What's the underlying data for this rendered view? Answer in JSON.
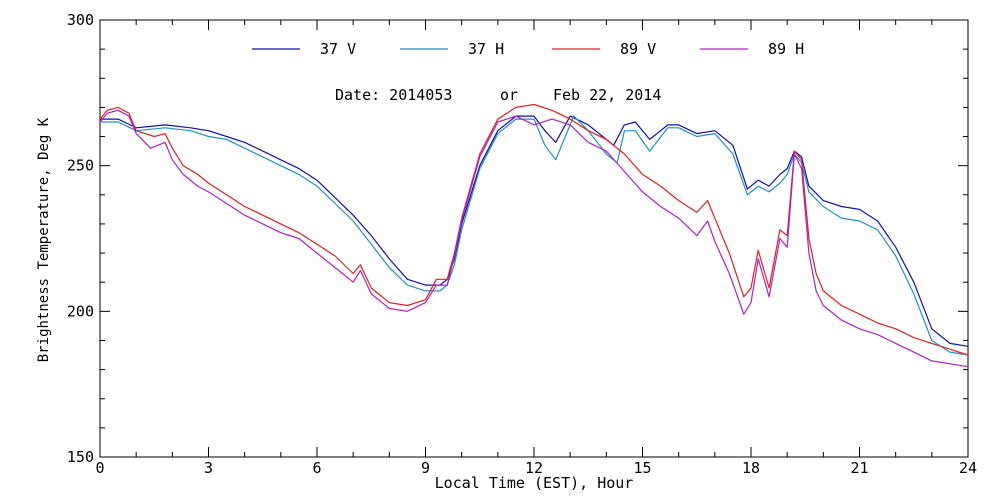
{
  "chart_data": {
    "type": "line",
    "annotation": {
      "date_label": "Date: 2014053",
      "or_label": "or",
      "date_text": "Feb 22, 2014"
    },
    "xlabel": "Local Time (EST), Hour",
    "ylabel": "Brightness Temperature, Deg K",
    "xlim": [
      0,
      24
    ],
    "ylim": [
      150,
      300
    ],
    "xticks": [
      0,
      3,
      6,
      9,
      12,
      15,
      18,
      21,
      24
    ],
    "yticks": [
      150,
      200,
      250,
      300
    ],
    "legend_position": "top",
    "grid": false,
    "series": [
      {
        "name": "37 V",
        "color": "#1010b0",
        "points": [
          [
            0,
            266
          ],
          [
            0.5,
            266
          ],
          [
            1,
            263
          ],
          [
            1.8,
            264
          ],
          [
            2.5,
            263
          ],
          [
            3,
            262
          ],
          [
            3.5,
            260
          ],
          [
            4,
            258
          ],
          [
            4.5,
            255
          ],
          [
            5,
            252
          ],
          [
            5.5,
            249
          ],
          [
            6,
            245
          ],
          [
            6.5,
            239
          ],
          [
            7,
            233
          ],
          [
            7.5,
            226
          ],
          [
            8,
            218
          ],
          [
            8.5,
            211
          ],
          [
            9,
            209
          ],
          [
            9.4,
            209
          ],
          [
            9.6,
            211
          ],
          [
            9.8,
            218
          ],
          [
            10,
            230
          ],
          [
            10.5,
            250
          ],
          [
            11,
            262
          ],
          [
            11.5,
            267
          ],
          [
            12,
            267
          ],
          [
            12.3,
            262
          ],
          [
            12.6,
            258
          ],
          [
            13,
            267
          ],
          [
            13.5,
            264
          ],
          [
            14,
            259
          ],
          [
            14.2,
            257
          ],
          [
            14.5,
            264
          ],
          [
            14.8,
            265
          ],
          [
            15.2,
            259
          ],
          [
            15.7,
            264
          ],
          [
            16,
            264
          ],
          [
            16.5,
            261
          ],
          [
            17,
            262
          ],
          [
            17.5,
            257
          ],
          [
            17.9,
            242
          ],
          [
            18.2,
            245
          ],
          [
            18.5,
            243
          ],
          [
            18.8,
            247
          ],
          [
            19,
            249
          ],
          [
            19.2,
            255
          ],
          [
            19.4,
            253
          ],
          [
            19.6,
            243
          ],
          [
            20,
            238
          ],
          [
            20.5,
            236
          ],
          [
            21,
            235
          ],
          [
            21.5,
            231
          ],
          [
            22,
            222
          ],
          [
            22.5,
            210
          ],
          [
            23,
            194
          ],
          [
            23.5,
            189
          ],
          [
            24,
            188
          ]
        ]
      },
      {
        "name": "37 H",
        "color": "#2090c8",
        "points": [
          [
            0,
            265
          ],
          [
            0.5,
            265
          ],
          [
            1,
            262
          ],
          [
            1.8,
            263
          ],
          [
            2.5,
            262
          ],
          [
            3,
            260
          ],
          [
            3.5,
            259
          ],
          [
            4,
            256
          ],
          [
            4.5,
            253
          ],
          [
            5,
            250
          ],
          [
            5.5,
            247
          ],
          [
            6,
            243
          ],
          [
            6.5,
            237
          ],
          [
            7,
            231
          ],
          [
            7.5,
            223
          ],
          [
            8,
            215
          ],
          [
            8.5,
            209
          ],
          [
            9,
            207
          ],
          [
            9.4,
            207
          ],
          [
            9.6,
            209
          ],
          [
            9.8,
            216
          ],
          [
            10,
            228
          ],
          [
            10.5,
            249
          ],
          [
            11,
            261
          ],
          [
            11.5,
            266
          ],
          [
            12,
            266
          ],
          [
            12.3,
            257
          ],
          [
            12.6,
            252
          ],
          [
            12.9,
            261
          ],
          [
            13.1,
            267
          ],
          [
            13.5,
            262
          ],
          [
            14,
            254
          ],
          [
            14.3,
            251
          ],
          [
            14.5,
            262
          ],
          [
            14.8,
            262
          ],
          [
            15.2,
            255
          ],
          [
            15.7,
            263
          ],
          [
            16,
            263
          ],
          [
            16.5,
            260
          ],
          [
            17,
            261
          ],
          [
            17.5,
            254
          ],
          [
            17.9,
            240
          ],
          [
            18.2,
            243
          ],
          [
            18.5,
            241
          ],
          [
            18.8,
            244
          ],
          [
            19,
            247
          ],
          [
            19.2,
            254
          ],
          [
            19.4,
            251
          ],
          [
            19.6,
            241
          ],
          [
            20,
            236
          ],
          [
            20.5,
            232
          ],
          [
            21,
            231
          ],
          [
            21.5,
            228
          ],
          [
            22,
            219
          ],
          [
            22.5,
            206
          ],
          [
            23,
            190
          ],
          [
            23.5,
            186
          ],
          [
            24,
            185
          ]
        ]
      },
      {
        "name": "89 V",
        "color": "#e02020",
        "points": [
          [
            0,
            266
          ],
          [
            0.2,
            269
          ],
          [
            0.5,
            270
          ],
          [
            0.8,
            268
          ],
          [
            1,
            262
          ],
          [
            1.5,
            260
          ],
          [
            1.8,
            261
          ],
          [
            2,
            256
          ],
          [
            2.3,
            250
          ],
          [
            2.7,
            247
          ],
          [
            3,
            244
          ],
          [
            3.5,
            240
          ],
          [
            4,
            236
          ],
          [
            4.5,
            233
          ],
          [
            5,
            230
          ],
          [
            5.5,
            227
          ],
          [
            6,
            223
          ],
          [
            6.5,
            219
          ],
          [
            7,
            213
          ],
          [
            7.2,
            216
          ],
          [
            7.5,
            208
          ],
          [
            8,
            203
          ],
          [
            8.5,
            202
          ],
          [
            9,
            204
          ],
          [
            9.3,
            211
          ],
          [
            9.6,
            211
          ],
          [
            9.8,
            220
          ],
          [
            10,
            232
          ],
          [
            10.5,
            254
          ],
          [
            11,
            266
          ],
          [
            11.5,
            270
          ],
          [
            12,
            271
          ],
          [
            12.5,
            269
          ],
          [
            13,
            266
          ],
          [
            13.5,
            262
          ],
          [
            14,
            259
          ],
          [
            14.5,
            254
          ],
          [
            15,
            247
          ],
          [
            15.5,
            243
          ],
          [
            16,
            238
          ],
          [
            16.5,
            234
          ],
          [
            16.8,
            238
          ],
          [
            17,
            232
          ],
          [
            17.4,
            220
          ],
          [
            17.8,
            205
          ],
          [
            18,
            208
          ],
          [
            18.2,
            221
          ],
          [
            18.5,
            208
          ],
          [
            18.8,
            228
          ],
          [
            19,
            226
          ],
          [
            19.2,
            255
          ],
          [
            19.4,
            252
          ],
          [
            19.6,
            225
          ],
          [
            19.8,
            213
          ],
          [
            20,
            207
          ],
          [
            20.5,
            202
          ],
          [
            21,
            199
          ],
          [
            21.5,
            196
          ],
          [
            22,
            194
          ],
          [
            22.5,
            191
          ],
          [
            23,
            189
          ],
          [
            23.5,
            187
          ],
          [
            24,
            185
          ]
        ]
      },
      {
        "name": "89 H",
        "color": "#b020c8",
        "points": [
          [
            0,
            265
          ],
          [
            0.2,
            268
          ],
          [
            0.5,
            269
          ],
          [
            0.8,
            267
          ],
          [
            1,
            261
          ],
          [
            1.4,
            256
          ],
          [
            1.8,
            258
          ],
          [
            2,
            252
          ],
          [
            2.3,
            247
          ],
          [
            2.7,
            243
          ],
          [
            3,
            241
          ],
          [
            3.5,
            237
          ],
          [
            4,
            233
          ],
          [
            4.5,
            230
          ],
          [
            5,
            227
          ],
          [
            5.5,
            225
          ],
          [
            6,
            220
          ],
          [
            6.5,
            215
          ],
          [
            7,
            210
          ],
          [
            7.2,
            214
          ],
          [
            7.5,
            206
          ],
          [
            8,
            201
          ],
          [
            8.5,
            200
          ],
          [
            9,
            203
          ],
          [
            9.3,
            209
          ],
          [
            9.6,
            209
          ],
          [
            9.8,
            219
          ],
          [
            10,
            231
          ],
          [
            10.5,
            253
          ],
          [
            11,
            265
          ],
          [
            11.5,
            267
          ],
          [
            12,
            264
          ],
          [
            12.5,
            266
          ],
          [
            13,
            264
          ],
          [
            13.5,
            258
          ],
          [
            14,
            255
          ],
          [
            14.5,
            248
          ],
          [
            15,
            241
          ],
          [
            15.5,
            236
          ],
          [
            16,
            232
          ],
          [
            16.5,
            226
          ],
          [
            16.8,
            231
          ],
          [
            17,
            224
          ],
          [
            17.4,
            213
          ],
          [
            17.8,
            199
          ],
          [
            18,
            203
          ],
          [
            18.2,
            218
          ],
          [
            18.5,
            205
          ],
          [
            18.8,
            225
          ],
          [
            19,
            222
          ],
          [
            19.2,
            254
          ],
          [
            19.4,
            249
          ],
          [
            19.6,
            220
          ],
          [
            19.8,
            207
          ],
          [
            20,
            202
          ],
          [
            20.5,
            197
          ],
          [
            21,
            194
          ],
          [
            21.5,
            192
          ],
          [
            22,
            189
          ],
          [
            22.5,
            186
          ],
          [
            23,
            183
          ],
          [
            23.5,
            182
          ],
          [
            24,
            181
          ]
        ]
      }
    ]
  }
}
